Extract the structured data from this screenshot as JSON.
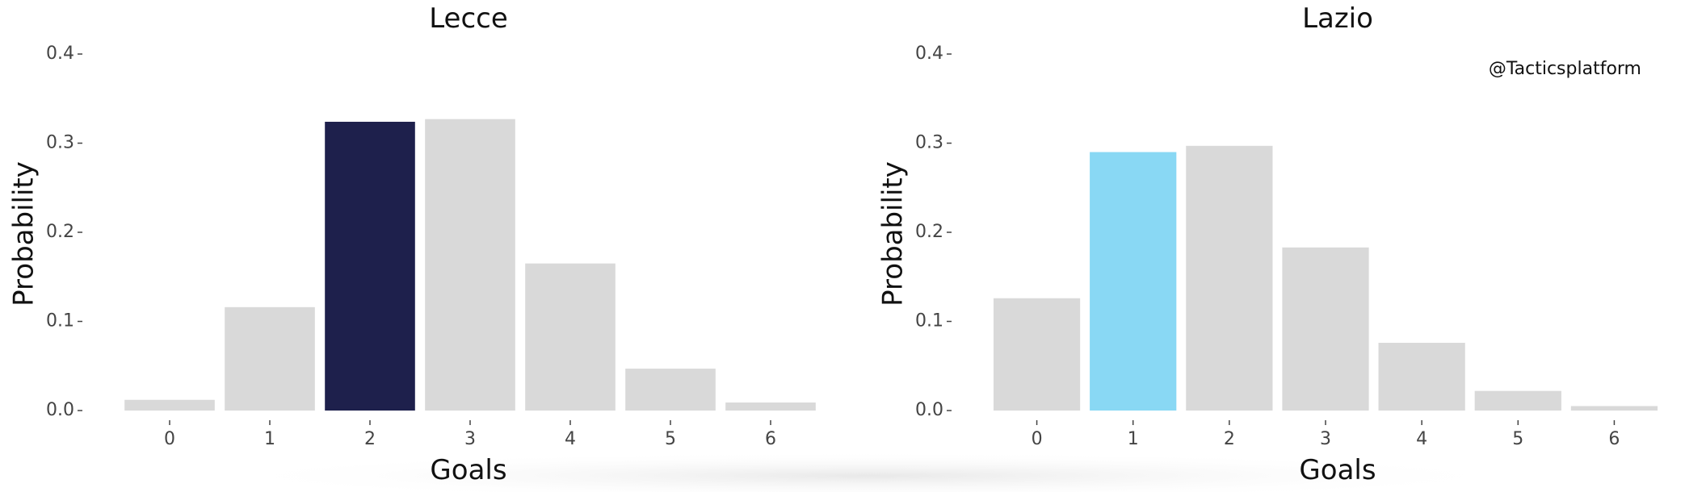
{
  "watermark": "@Tacticsplatform",
  "chart_data": [
    {
      "type": "bar",
      "title": "Lecce",
      "xlabel": "Goals",
      "ylabel": "Probability",
      "categories": [
        "0",
        "1",
        "2",
        "3",
        "4",
        "5",
        "6"
      ],
      "values": [
        0.012,
        0.116,
        0.324,
        0.327,
        0.165,
        0.047,
        0.009
      ],
      "highlight_index": 2,
      "ylim": [
        0,
        0.4
      ],
      "yticks": [
        "0.0",
        "0.1",
        "0.2",
        "0.3",
        "0.4"
      ],
      "bar_color": "#d9d9d9",
      "highlight_color": "#1e204c",
      "grid": false,
      "legend": "none"
    },
    {
      "type": "bar",
      "title": "Lazio",
      "xlabel": "Goals",
      "ylabel": "Probability",
      "categories": [
        "0",
        "1",
        "2",
        "3",
        "4",
        "5",
        "6"
      ],
      "values": [
        0.126,
        0.29,
        0.297,
        0.183,
        0.076,
        0.022,
        0.005
      ],
      "highlight_index": 1,
      "ylim": [
        0,
        0.4
      ],
      "yticks": [
        "0.0",
        "0.1",
        "0.2",
        "0.3",
        "0.4"
      ],
      "bar_color": "#d9d9d9",
      "highlight_color": "#89d8f4",
      "grid": false,
      "legend": "none"
    }
  ]
}
